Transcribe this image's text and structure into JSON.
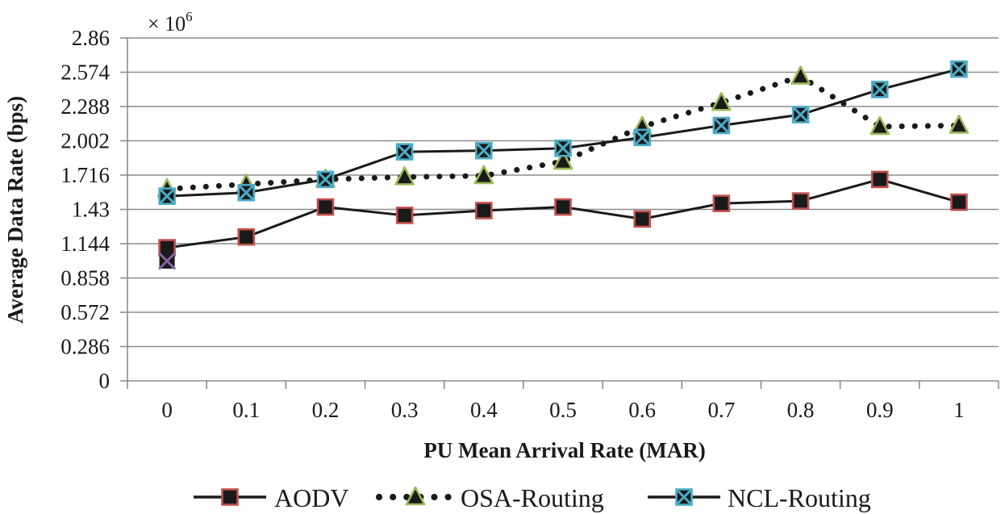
{
  "chart_data": {
    "type": "line",
    "title": "",
    "xlabel": "PU Mean Arrival Rate (MAR)",
    "ylabel": "Average Data Rate (bps)",
    "y_multiplier_label": "× 10",
    "y_multiplier_exp": "6",
    "categories": [
      "0",
      "0.1",
      "0.2",
      "0.3",
      "0.4",
      "0.5",
      "0.6",
      "0.7",
      "0.8",
      "0.9",
      "1"
    ],
    "yticks": [
      "0",
      "0.286",
      "0.572",
      "0.858",
      "1.144",
      "1.43",
      "1.716",
      "2.002",
      "2.288",
      "2.574",
      "2.86"
    ],
    "ylim": [
      0,
      2.86
    ],
    "grid": true,
    "legend_position": "bottom",
    "series": [
      {
        "name": "AODV",
        "marker": "square",
        "line": "solid",
        "color": "#1a1a1a",
        "marker_fill": "#1a1a1a",
        "marker_edge": "#c0504d",
        "values": [
          1.11,
          1.2,
          1.45,
          1.38,
          1.42,
          1.45,
          1.35,
          1.48,
          1.5,
          1.68,
          1.49
        ]
      },
      {
        "name": "OSA-Routing",
        "marker": "triangle",
        "line": "dotted",
        "color": "#1a1a1a",
        "marker_fill": "#1a1a1a",
        "marker_edge": "#9bbb59",
        "values": [
          1.6,
          1.64,
          1.68,
          1.7,
          1.71,
          1.83,
          2.12,
          2.32,
          2.54,
          2.12,
          2.13
        ]
      },
      {
        "name": "NCL-Routing",
        "marker": "x-square",
        "line": "solid",
        "color": "#1a1a1a",
        "marker_fill": "#1a1a1a",
        "marker_edge": "#4bacc6",
        "values": [
          1.54,
          1.57,
          1.68,
          1.91,
          1.92,
          1.94,
          2.03,
          2.13,
          2.22,
          2.43,
          2.6
        ]
      }
    ],
    "extra_marker": {
      "series": "NCL-Routing",
      "category": "0",
      "value": 1.0,
      "color": "#8064a2"
    }
  }
}
